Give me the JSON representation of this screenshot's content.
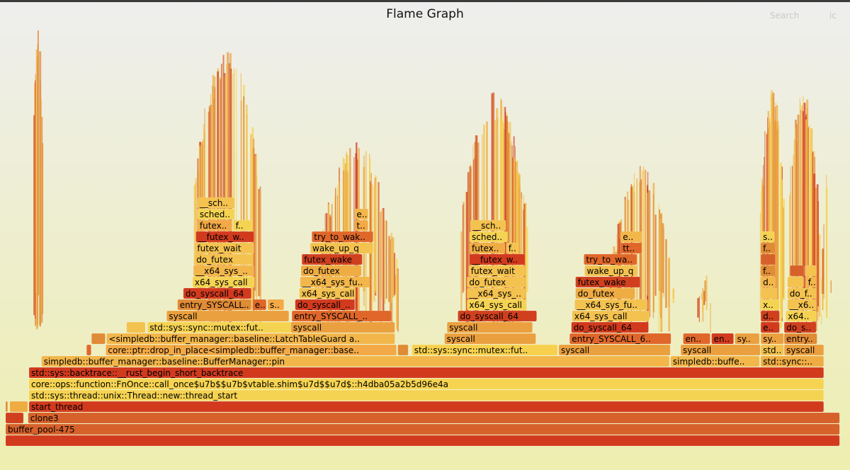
{
  "header": {
    "title": "Flame Graph",
    "search_label": "Search",
    "ic_label": "ic"
  },
  "chart_data": {
    "type": "flame",
    "title": "Flame Graph",
    "x_unit": "fraction of total samples (0-1000)",
    "root": "buffer_pool-475",
    "frames": [
      {
        "d": 0,
        "s": 0,
        "w": 1000,
        "n": "",
        "c": "#d23a1e"
      },
      {
        "d": 1,
        "s": 0,
        "w": 1000,
        "n": "buffer_pool-475",
        "c": "#d6612a"
      },
      {
        "d": 2,
        "s": 0,
        "w": 22,
        "n": "",
        "c": "#d0401f"
      },
      {
        "d": 2,
        "s": 27,
        "w": 973,
        "n": "clone3",
        "c": "#d6612a"
      },
      {
        "d": 3,
        "s": 0,
        "w": 3,
        "n": "",
        "c": "#e08b35"
      },
      {
        "d": 3,
        "s": 5,
        "w": 22,
        "n": "",
        "c": "#eeac43"
      },
      {
        "d": 3,
        "s": 28,
        "w": 953,
        "n": "start_thread",
        "c": "#d23a1e"
      },
      {
        "d": 4,
        "s": 28,
        "w": 953,
        "n": "std::sys::thread::unix::Thread::new::thread_start",
        "c": "#f5d352"
      },
      {
        "d": 5,
        "s": 28,
        "w": 953,
        "n": "core::ops::function::FnOnce::call_once$u7b$$u7b$vtable.shim$u7d$$u7d$::h4dba05a2b5d96e4a",
        "c": "#f6d451"
      },
      {
        "d": 6,
        "s": 28,
        "w": 953,
        "n": "std::sys::backtrace::__rust_begin_short_backtrace",
        "c": "#d23a1e"
      },
      {
        "d": 7,
        "s": 43,
        "w": 753,
        "n": "simpledb::buffer_manager::baseline::BufferManager::pin",
        "c": "#f2b64a"
      },
      {
        "d": 7,
        "s": 797,
        "w": 107,
        "n": "simpledb::buffe..",
        "c": "#f2b64a"
      },
      {
        "d": 7,
        "s": 905,
        "w": 76,
        "n": "std::sync::..",
        "c": "#eeac43"
      },
      {
        "d": 8,
        "s": 97,
        "w": 6,
        "n": "",
        "c": "#e0672a"
      },
      {
        "d": 8,
        "s": 120,
        "w": 349,
        "n": "core::ptr::drop_in_place<simpledb::buffer_manager::base..",
        "c": "#f2a946"
      },
      {
        "d": 8,
        "s": 470,
        "w": 13,
        "n": "",
        "c": "#e08b35"
      },
      {
        "d": 8,
        "s": 487,
        "w": 175,
        "n": "std::sys::sync::mutex::fut..",
        "c": "#f7d14e"
      },
      {
        "d": 8,
        "s": 663,
        "w": 134,
        "n": "syscall",
        "c": "#eba03f"
      },
      {
        "d": 8,
        "s": 809,
        "w": 96,
        "n": "syscall",
        "c": "#eba03f"
      },
      {
        "d": 8,
        "s": 905,
        "w": 28,
        "n": "std..",
        "c": "#f3c24f"
      },
      {
        "d": 8,
        "s": 933,
        "w": 48,
        "n": "syscall",
        "c": "#eba03f"
      },
      {
        "d": 9,
        "s": 103,
        "w": 17,
        "n": "",
        "c": "#e08b35"
      },
      {
        "d": 9,
        "s": 121,
        "w": 346,
        "n": "<simpledb::buffer_manager::baseline::LatchTableGuard a..",
        "c": "#f2b64a"
      },
      {
        "d": 9,
        "s": 526,
        "w": 110,
        "n": "syscall",
        "c": "#eba03f"
      },
      {
        "d": 9,
        "s": 676,
        "w": 122,
        "n": "entry_SYSCALL_6..",
        "c": "#e0672a"
      },
      {
        "d": 9,
        "s": 812,
        "w": 33,
        "n": "en..",
        "c": "#e0672a"
      },
      {
        "d": 9,
        "s": 846,
        "w": 27,
        "n": "en..",
        "c": "#d23a1e"
      },
      {
        "d": 9,
        "s": 874,
        "w": 30,
        "n": "sy..",
        "c": "#eba03f"
      },
      {
        "d": 9,
        "s": 905,
        "w": 28,
        "n": "sy..",
        "c": "#eba03f"
      },
      {
        "d": 9,
        "s": 933,
        "w": 40,
        "n": "entry..",
        "c": "#e08b35"
      },
      {
        "d": 10,
        "s": 145,
        "w": 23,
        "n": "",
        "c": "#f3c24f"
      },
      {
        "d": 10,
        "s": 170,
        "w": 175,
        "n": "std::sys::sync::mutex::fut..",
        "c": "#f5d352"
      },
      {
        "d": 10,
        "s": 342,
        "w": 125,
        "n": "syscall",
        "c": "#eba03f"
      },
      {
        "d": 10,
        "s": 529,
        "w": 103,
        "n": "syscall",
        "c": "#eba03f"
      },
      {
        "d": 10,
        "s": 678,
        "w": 93,
        "n": "do_syscall_64",
        "c": "#d23a1e"
      },
      {
        "d": 10,
        "s": 905,
        "w": 23,
        "n": "en..",
        "c": "#d23a1e"
      },
      {
        "d": 10,
        "s": 933,
        "w": 39,
        "n": "do_s..",
        "c": "#d0401f"
      },
      {
        "d": 11,
        "s": 193,
        "w": 147,
        "n": "syscall",
        "c": "#eba03f"
      },
      {
        "d": 11,
        "s": 343,
        "w": 120,
        "n": "entry_SYSCALL_..",
        "c": "#e0672a"
      },
      {
        "d": 11,
        "s": 542,
        "w": 95,
        "n": "do_syscall_64",
        "c": "#d0401f"
      },
      {
        "d": 11,
        "s": 679,
        "w": 93,
        "n": "x64_sys_call",
        "c": "#f3c24f"
      },
      {
        "d": 11,
        "s": 905,
        "w": 23,
        "n": "do..",
        "c": "#d0401f"
      },
      {
        "d": 11,
        "s": 935,
        "w": 37,
        "n": "x64..",
        "c": "#f5d352"
      },
      {
        "d": 12,
        "s": 206,
        "w": 89,
        "n": "entry_SYSCALL..",
        "c": "#e08b35"
      },
      {
        "d": 12,
        "s": 296,
        "w": 17,
        "n": "e..",
        "c": "#e0672a"
      },
      {
        "d": 12,
        "s": 314,
        "w": 20,
        "n": "s..",
        "c": "#f2a946"
      },
      {
        "d": 12,
        "s": 347,
        "w": 72,
        "n": "do_syscall_64",
        "c": "#d23a1e"
      },
      {
        "d": 12,
        "s": 553,
        "w": 71,
        "n": "x64_sys_call",
        "c": "#f5d352"
      },
      {
        "d": 12,
        "s": 682,
        "w": 88,
        "n": "__x64_sys_fu..",
        "c": "#f3c24f"
      },
      {
        "d": 12,
        "s": 905,
        "w": 23,
        "n": "x..",
        "c": "#f5d352"
      },
      {
        "d": 12,
        "s": 937,
        "w": 35,
        "n": "__x6..",
        "c": "#f3c24f"
      },
      {
        "d": 13,
        "s": 213,
        "w": 82,
        "n": "do_syscall_64",
        "c": "#d23a1e"
      },
      {
        "d": 13,
        "s": 352,
        "w": 68,
        "n": "x64_sys_call",
        "c": "#f3c24f"
      },
      {
        "d": 13,
        "s": 553,
        "w": 70,
        "n": "__x64_sys_..",
        "c": "#f3c24f"
      },
      {
        "d": 13,
        "s": 683,
        "w": 72,
        "n": "do_futex",
        "c": "#eeac43"
      },
      {
        "d": 13,
        "s": 905,
        "w": 20,
        "n": "",
        "c": "#f3c24f"
      },
      {
        "d": 13,
        "s": 937,
        "w": 35,
        "n": "do_f..",
        "c": "#f3c24f"
      },
      {
        "d": 14,
        "s": 224,
        "w": 75,
        "n": "x64_sys_call",
        "c": "#f5d352"
      },
      {
        "d": 14,
        "s": 353,
        "w": 84,
        "n": "__x64_sys_fu..",
        "c": "#f2b64a"
      },
      {
        "d": 14,
        "s": 553,
        "w": 70,
        "n": "do_futex",
        "c": "#f3c24f"
      },
      {
        "d": 14,
        "s": 683,
        "w": 78,
        "n": "futex_wake",
        "c": "#d0401f"
      },
      {
        "d": 14,
        "s": 905,
        "w": 18,
        "n": "d..",
        "c": "#f2b64a"
      },
      {
        "d": 14,
        "s": 937,
        "w": 20,
        "n": "",
        "c": "#f3c24f"
      },
      {
        "d": 14,
        "s": 959,
        "w": 13,
        "n": "f..",
        "c": "#f2b64a"
      },
      {
        "d": 15,
        "s": 225,
        "w": 73,
        "n": "__x64_sys_..",
        "c": "#f2b64a"
      },
      {
        "d": 15,
        "s": 354,
        "w": 73,
        "n": "do_futex",
        "c": "#eeac43"
      },
      {
        "d": 15,
        "s": 555,
        "w": 68,
        "n": "futex_wait",
        "c": "#f3c24f"
      },
      {
        "d": 15,
        "s": 694,
        "w": 63,
        "n": "wake_up_q",
        "c": "#f3c24f"
      },
      {
        "d": 15,
        "s": 905,
        "w": 18,
        "n": "f..",
        "c": "#e08b35"
      },
      {
        "d": 15,
        "s": 940,
        "w": 17,
        "n": "",
        "c": "#d6612a"
      },
      {
        "d": 15,
        "s": 958,
        "w": 14,
        "n": "",
        "c": "#f3c24f"
      },
      {
        "d": 16,
        "s": 226,
        "w": 71,
        "n": "do_futex",
        "c": "#f3c24f"
      },
      {
        "d": 16,
        "s": 355,
        "w": 73,
        "n": "futex_wake",
        "c": "#d0401f"
      },
      {
        "d": 16,
        "s": 556,
        "w": 67,
        "n": "__futex_w..",
        "c": "#d23a1e"
      },
      {
        "d": 16,
        "s": 693,
        "w": 64,
        "n": "try_to_wak..",
        "c": "#e0672a"
      },
      {
        "d": 16,
        "s": 905,
        "w": 18,
        "n": "",
        "c": "#d6612a"
      },
      {
        "d": 17,
        "s": 227,
        "w": 71,
        "n": "futex_wait",
        "c": "#f3c24f"
      },
      {
        "d": 17,
        "s": 365,
        "w": 76,
        "n": "wake_up_q",
        "c": "#f3c24f"
      },
      {
        "d": 17,
        "s": 556,
        "w": 43,
        "n": "futex..",
        "c": "#eeac43"
      },
      {
        "d": 17,
        "s": 600,
        "w": 14,
        "n": "f..",
        "c": "#f3c24f"
      },
      {
        "d": 17,
        "s": 737,
        "w": 26,
        "n": "tt..",
        "c": "#e0672a"
      },
      {
        "d": 17,
        "s": 905,
        "w": 18,
        "n": "f..",
        "c": "#e08b35"
      },
      {
        "d": 18,
        "s": 228,
        "w": 70,
        "n": "__futex_w..",
        "c": "#d23a1e"
      },
      {
        "d": 18,
        "s": 367,
        "w": 74,
        "n": "try_to_wak..",
        "c": "#e0672a"
      },
      {
        "d": 18,
        "s": 556,
        "w": 46,
        "n": "sched..",
        "c": "#f5d352"
      },
      {
        "d": 18,
        "s": 737,
        "w": 26,
        "n": "e..",
        "c": "#f2b64a"
      },
      {
        "d": 18,
        "s": 905,
        "w": 17,
        "n": "s..",
        "c": "#f5d352"
      },
      {
        "d": 19,
        "s": 230,
        "w": 42,
        "n": "futex..",
        "c": "#f2a946"
      },
      {
        "d": 19,
        "s": 273,
        "w": 23,
        "n": "f..",
        "c": "#f5d352"
      },
      {
        "d": 19,
        "s": 418,
        "w": 17,
        "n": "t..",
        "c": "#f2a946"
      },
      {
        "d": 19,
        "s": 557,
        "w": 43,
        "n": "__sch..",
        "c": "#f3c24f"
      },
      {
        "d": 20,
        "s": 230,
        "w": 45,
        "n": "sched..",
        "c": "#f5d352"
      },
      {
        "d": 20,
        "s": 418,
        "w": 17,
        "n": "e..",
        "c": "#f2b64a"
      },
      {
        "d": 21,
        "s": 230,
        "w": 45,
        "n": "__sch..",
        "c": "#f3c24f"
      }
    ]
  }
}
